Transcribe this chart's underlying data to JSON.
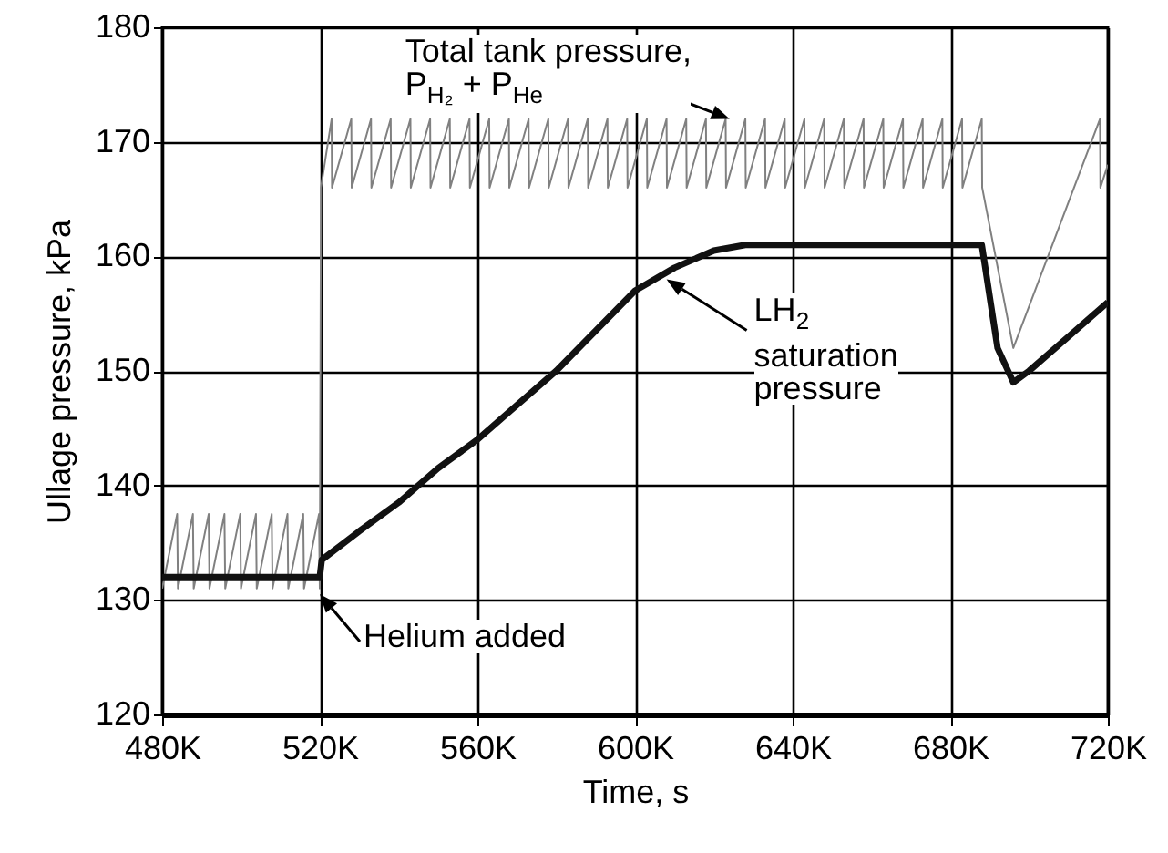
{
  "chart_data": {
    "type": "line",
    "xlabel": "Time, s",
    "ylabel": "Ullage pressure, kPa",
    "xlim": [
      480000,
      720000
    ],
    "xticks": [
      {
        "value": 480000,
        "label": "480K"
      },
      {
        "value": 520000,
        "label": "520K"
      },
      {
        "value": 560000,
        "label": "560K"
      },
      {
        "value": 600000,
        "label": "600K"
      },
      {
        "value": 640000,
        "label": "640K"
      },
      {
        "value": 680000,
        "label": "680K"
      },
      {
        "value": 720000,
        "label": "720K"
      }
    ],
    "ylim": [
      120,
      180
    ],
    "yticks": [
      120,
      130,
      140,
      150,
      160,
      170,
      180
    ],
    "grid": true,
    "series": [
      {
        "color": "#808080",
        "x": [
          480000,
          483800,
          484000,
          487800,
          488000,
          491800,
          492000,
          495800,
          496000,
          499800,
          500000,
          503800,
          504000,
          507800,
          508000,
          511800,
          512000,
          515800,
          516000,
          519800,
          520000,
          520300,
          523000,
          523100,
          528000,
          528100,
          533000,
          533100,
          538000,
          538100,
          543000,
          543100,
          548000,
          548100,
          553000,
          553100,
          558000,
          558100,
          563000,
          563100,
          568000,
          568100,
          573000,
          573100,
          578000,
          578100,
          583000,
          583100,
          588000,
          588100,
          593000,
          593100,
          598000,
          598100,
          603000,
          603100,
          608000,
          608100,
          613000,
          613100,
          618000,
          618100,
          623000,
          623100,
          628000,
          628100,
          633000,
          633100,
          638000,
          638100,
          643000,
          643100,
          648000,
          648100,
          653000,
          653100,
          658000,
          658100,
          663000,
          663100,
          668000,
          668100,
          673000,
          673100,
          678000,
          678100,
          683000,
          683100,
          688000,
          688100,
          696000,
          718000,
          718100,
          720000
        ],
        "values": [
          131,
          137.5,
          131,
          137.5,
          131,
          137.5,
          131,
          137.5,
          131,
          137.5,
          131,
          137.5,
          131,
          137.5,
          131,
          137.5,
          131,
          137.5,
          131,
          137.5,
          131,
          166,
          172,
          166,
          172,
          166,
          172,
          166,
          172,
          166,
          172,
          166,
          172,
          166,
          172,
          166,
          172,
          166,
          172,
          166,
          172,
          166,
          172,
          166,
          172,
          166,
          172,
          166,
          172,
          166,
          172,
          166,
          172,
          166,
          172,
          166,
          172,
          166,
          172,
          166,
          172,
          166,
          172,
          166,
          172,
          166,
          172,
          166,
          172,
          166,
          172,
          166,
          172,
          166,
          172,
          166,
          172,
          166,
          172,
          166,
          172,
          166,
          172,
          166,
          172,
          166,
          172,
          166,
          172,
          166,
          152,
          172,
          166,
          168
        ]
      },
      {
        "color": "#111111",
        "x": [
          480000,
          520000,
          520500,
          530000,
          540000,
          550000,
          560000,
          570000,
          580000,
          590000,
          600000,
          610000,
          620000,
          628000,
          688000,
          692000,
          696000,
          700000,
          710000,
          720000
        ],
        "values": [
          132,
          132,
          133.5,
          136,
          138.5,
          141.5,
          144,
          147,
          150,
          153.5,
          157,
          159,
          160.5,
          161,
          161,
          152,
          149,
          150,
          153,
          156
        ]
      }
    ],
    "annotations": [
      {
        "text": "Total tank pressure,\nP$_{H₂}$ + P$_{He}$",
        "x": 624000,
        "y": 172
      },
      {
        "text": "LH$_{2}$\nsaturation\npressure",
        "x": 608000,
        "y": 158
      },
      {
        "text": "Helium added",
        "x": 520000,
        "y": 130.5
      }
    ]
  }
}
